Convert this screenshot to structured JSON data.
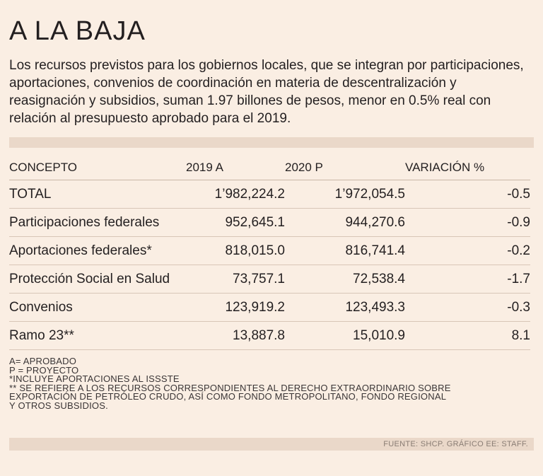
{
  "chart_data": {
    "type": "table",
    "title": "A LA BAJA",
    "subtitle": "Los recursos previstos para los gobiernos locales, que se integran por participaciones, aportaciones, convenios de coordinación en materia de descentralización y reasignación y subsidios, suman 1.97 billones de pesos, menor en 0.5% real con relación al presupuesto aprobado para el 2019.",
    "columns": [
      "CONCEPTO",
      "2019 A",
      "2020 P",
      "VARIACIÓN %"
    ],
    "rows": [
      [
        "TOTAL",
        "1’982,224.2",
        "1’972,054.5",
        "-0.5"
      ],
      [
        "Participaciones federales",
        "952,645.1",
        "944,270.6",
        "-0.9"
      ],
      [
        "Aportaciones federales*",
        "818,015.0",
        "816,741.4",
        "-0.2"
      ],
      [
        "Protección Social en Salud",
        "73,757.1",
        "72,538.4",
        "-1.7"
      ],
      [
        "Convenios",
        "123,919.2",
        "123,493.3",
        "-0.3"
      ],
      [
        "Ramo 23**",
        "13,887.8",
        "15,010.9",
        "8.1"
      ]
    ],
    "notes": [
      "A= APROBADO",
      "P = PROYECTO",
      "*INCLUYE APORTACIONES AL ISSSTE",
      "** SE REFIERE A LOS RECURSOS CORRESPONDIENTES AL DERECHO EXTRAORDINARIO SOBRE",
      "EXPORTACIÓN DE PETRÓLEO CRUDO, ASÍ COMO FONDO METROPOLITANO, FONDO REGIONAL",
      "Y OTROS SUBSIDIOS."
    ],
    "source": "FUENTE: SHCP. GRÁFICO EE: STAFF."
  },
  "colors": {
    "background": "#faeee3",
    "bar": "#ead8c9",
    "text": "#231f20"
  }
}
